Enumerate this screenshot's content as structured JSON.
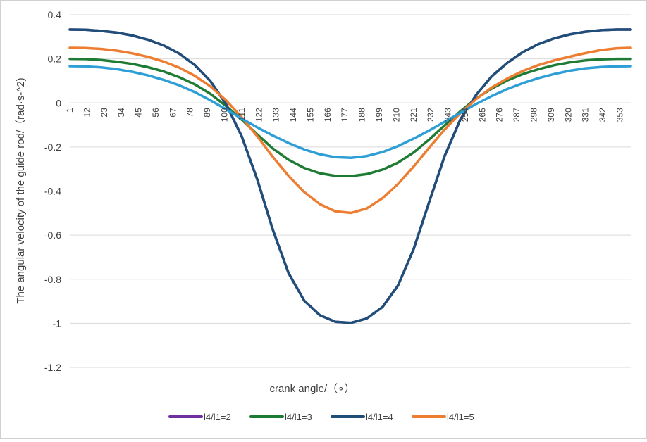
{
  "chart_data": {
    "type": "line",
    "title": "",
    "xlabel": "crank angle/（∘）",
    "ylabel": "The angular velocity of the guide rod/（rad·s-^2)",
    "ylim": [
      -1.2,
      0.4
    ],
    "yticks": [
      "0.4",
      "0.2",
      "0",
      "-0.2",
      "-0.4",
      "-0.6",
      "-0.8",
      "-1",
      "-1.2"
    ],
    "x_categories": [
      "1",
      "12",
      "23",
      "34",
      "45",
      "56",
      "67",
      "78",
      "89",
      "100",
      "111",
      "122",
      "133",
      "144",
      "155",
      "166",
      "177",
      "188",
      "199",
      "210",
      "221",
      "232",
      "243",
      "254",
      "265",
      "276",
      "287",
      "298",
      "309",
      "320",
      "331",
      "342",
      "353"
    ],
    "x_range": [
      1,
      360
    ],
    "grid": "horizontal",
    "legend_position": "bottom",
    "series": [
      {
        "name": "l4/l1=2",
        "color": "#7030a0",
        "x": [
          1,
          11,
          21,
          31,
          41,
          51,
          61,
          71,
          81,
          91,
          101,
          111,
          121,
          131,
          141,
          151,
          161,
          171,
          181,
          191,
          201,
          211,
          221,
          231,
          241,
          251,
          261,
          271,
          281,
          291,
          301,
          311,
          321,
          331,
          341,
          351,
          360
        ],
        "values": [
          0.333,
          0.332,
          0.327,
          0.319,
          0.306,
          0.287,
          0.261,
          0.224,
          0.172,
          0.099,
          -0.005,
          -0.151,
          -0.348,
          -0.576,
          -0.772,
          -0.897,
          -0.963,
          -0.993,
          -0.998,
          -0.978,
          -0.927,
          -0.829,
          -0.664,
          -0.449,
          -0.239,
          -0.074,
          0.036,
          0.121,
          0.182,
          0.231,
          0.267,
          0.293,
          0.311,
          0.323,
          0.33,
          0.333,
          0.333
        ]
      },
      {
        "name": "l4/l1=3",
        "color": "#1e7b34",
        "x": [
          1,
          11,
          21,
          31,
          41,
          51,
          61,
          71,
          81,
          91,
          101,
          111,
          121,
          131,
          141,
          151,
          161,
          171,
          181,
          191,
          201,
          211,
          221,
          231,
          241,
          251,
          261,
          271,
          281,
          291,
          301,
          311,
          321,
          331,
          341,
          351,
          360
        ],
        "values": [
          0.2,
          0.199,
          0.195,
          0.187,
          0.177,
          0.162,
          0.143,
          0.117,
          0.084,
          0.041,
          -0.014,
          -0.076,
          -0.143,
          -0.207,
          -0.258,
          -0.295,
          -0.319,
          -0.331,
          -0.332,
          -0.323,
          -0.303,
          -0.271,
          -0.225,
          -0.166,
          -0.101,
          -0.038,
          0.02,
          0.065,
          0.102,
          0.131,
          0.153,
          0.171,
          0.184,
          0.193,
          0.198,
          0.2,
          0.2
        ]
      },
      {
        "name": "l4/l1=4",
        "color": "#1f4e79",
        "x": [
          1,
          11,
          21,
          31,
          41,
          51,
          61,
          71,
          81,
          91,
          101,
          111,
          121,
          131,
          141,
          151,
          161,
          171,
          181,
          191,
          201,
          211,
          221,
          231,
          241,
          251,
          261,
          271,
          281,
          291,
          301,
          311,
          321,
          331,
          341,
          351,
          360
        ],
        "values": [
          0.333,
          0.332,
          0.327,
          0.319,
          0.306,
          0.287,
          0.261,
          0.224,
          0.172,
          0.099,
          -0.005,
          -0.151,
          -0.348,
          -0.576,
          -0.772,
          -0.897,
          -0.963,
          -0.993,
          -0.998,
          -0.978,
          -0.927,
          -0.829,
          -0.664,
          -0.449,
          -0.239,
          -0.074,
          0.036,
          0.121,
          0.182,
          0.231,
          0.267,
          0.293,
          0.311,
          0.323,
          0.33,
          0.333,
          0.333
        ]
      },
      {
        "name": "l4/l1=5",
        "color": "#ed7d31",
        "x": [
          1,
          11,
          21,
          31,
          41,
          51,
          61,
          71,
          81,
          91,
          101,
          111,
          121,
          131,
          141,
          151,
          161,
          171,
          181,
          191,
          201,
          211,
          221,
          231,
          241,
          251,
          261,
          271,
          281,
          291,
          301,
          311,
          321,
          331,
          341,
          351,
          360
        ],
        "values": [
          0.25,
          0.249,
          0.245,
          0.237,
          0.225,
          0.209,
          0.188,
          0.16,
          0.123,
          0.075,
          0.012,
          -0.065,
          -0.152,
          -0.245,
          -0.331,
          -0.404,
          -0.459,
          -0.492,
          -0.499,
          -0.479,
          -0.433,
          -0.368,
          -0.289,
          -0.203,
          -0.12,
          -0.046,
          0.017,
          0.07,
          0.111,
          0.145,
          0.172,
          0.193,
          0.21,
          0.226,
          0.24,
          0.248,
          0.25
        ]
      },
      {
        "name": "",
        "color": "#2e9fd6",
        "x": [
          1,
          11,
          21,
          31,
          41,
          51,
          61,
          71,
          81,
          91,
          101,
          111,
          121,
          131,
          141,
          151,
          161,
          171,
          181,
          191,
          201,
          211,
          221,
          231,
          241,
          251,
          261,
          271,
          281,
          291,
          301,
          311,
          321,
          331,
          341,
          351,
          360
        ],
        "values": [
          0.167,
          0.166,
          0.161,
          0.153,
          0.141,
          0.125,
          0.105,
          0.08,
          0.049,
          0.012,
          -0.029,
          -0.071,
          -0.111,
          -0.148,
          -0.182,
          -0.211,
          -0.233,
          -0.246,
          -0.249,
          -0.241,
          -0.223,
          -0.196,
          -0.162,
          -0.125,
          -0.085,
          -0.045,
          -0.005,
          0.031,
          0.063,
          0.09,
          0.113,
          0.131,
          0.146,
          0.157,
          0.163,
          0.166,
          0.167
        ]
      }
    ]
  }
}
